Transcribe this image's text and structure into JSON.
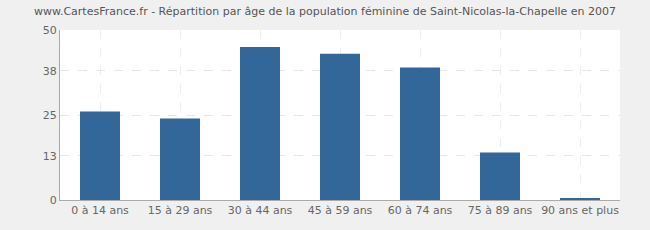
{
  "chart_data": {
    "type": "bar",
    "title": "www.CartesFrance.fr - Répartition par âge de la population féminine de Saint-Nicolas-la-Chapelle en 2007",
    "categories": [
      "0 à 14 ans",
      "15 à 29 ans",
      "30 à 44 ans",
      "45 à 59 ans",
      "60 à 74 ans",
      "75 à 89 ans",
      "90 ans et plus"
    ],
    "values": [
      26,
      24,
      45,
      43,
      39,
      14,
      0.3
    ],
    "color": "#336699",
    "ylim": [
      0,
      50
    ],
    "yticks": [
      0,
      13,
      25,
      38,
      50
    ],
    "grid": true
  }
}
